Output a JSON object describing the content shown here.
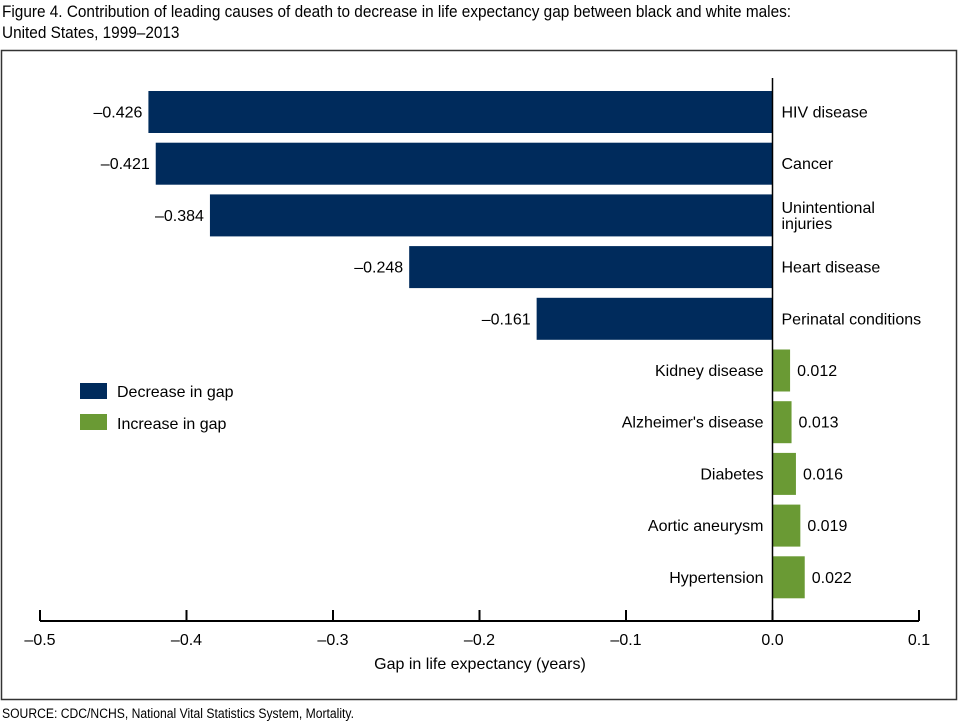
{
  "title_line1": "Figure 4. Contribution of leading causes of death to decrease in life expectancy gap between black and white males:",
  "title_line2": "United States, 1999–2013",
  "source": "SOURCE: CDC/NCHS, National Vital Statistics System, Mortality.",
  "colors": {
    "decrease": "#002b5c",
    "increase": "#6a9a34"
  },
  "chart_data": {
    "type": "bar",
    "orientation": "horizontal",
    "title": "Contribution of leading causes of death to decrease in life expectancy gap between black and white males: United States, 1999–2013",
    "xlabel": "Gap in life expectancy (years)",
    "ylabel": "",
    "xlim": [
      -0.5,
      0.1
    ],
    "xticks": [
      -0.5,
      -0.4,
      -0.3,
      -0.2,
      -0.1,
      0.0,
      0.1
    ],
    "xtick_labels": [
      "–0.5",
      "–0.4",
      "–0.3",
      "–0.2",
      "–0.1",
      "0.0",
      "0.1"
    ],
    "grid": false,
    "legend_position": "left-middle",
    "series": [
      {
        "name": "Decrease in gap",
        "color": "#002b5c"
      },
      {
        "name": "Increase in gap",
        "color": "#6a9a34"
      }
    ],
    "categories": [
      "HIV disease",
      "Cancer",
      "Unintentional injuries",
      "Heart disease",
      "Perinatal conditions",
      "Kidney disease",
      "Alzheimer's disease",
      "Diabetes",
      "Aortic aneurysm",
      "Hypertension"
    ],
    "category_label_lines": [
      [
        "HIV disease"
      ],
      [
        "Cancer"
      ],
      [
        "Unintentional",
        "injuries"
      ],
      [
        "Heart disease"
      ],
      [
        "Perinatal conditions"
      ],
      [
        "Kidney disease"
      ],
      [
        "Alzheimer's disease"
      ],
      [
        "Diabetes"
      ],
      [
        "Aortic aneurysm"
      ],
      [
        "Hypertension"
      ]
    ],
    "values": [
      -0.426,
      -0.421,
      -0.384,
      -0.248,
      -0.161,
      0.012,
      0.013,
      0.016,
      0.019,
      0.022
    ],
    "value_labels": [
      "–0.426",
      "–0.421",
      "–0.384",
      "–0.248",
      "–0.161",
      "0.012",
      "0.013",
      "0.016",
      "0.019",
      "0.022"
    ]
  }
}
